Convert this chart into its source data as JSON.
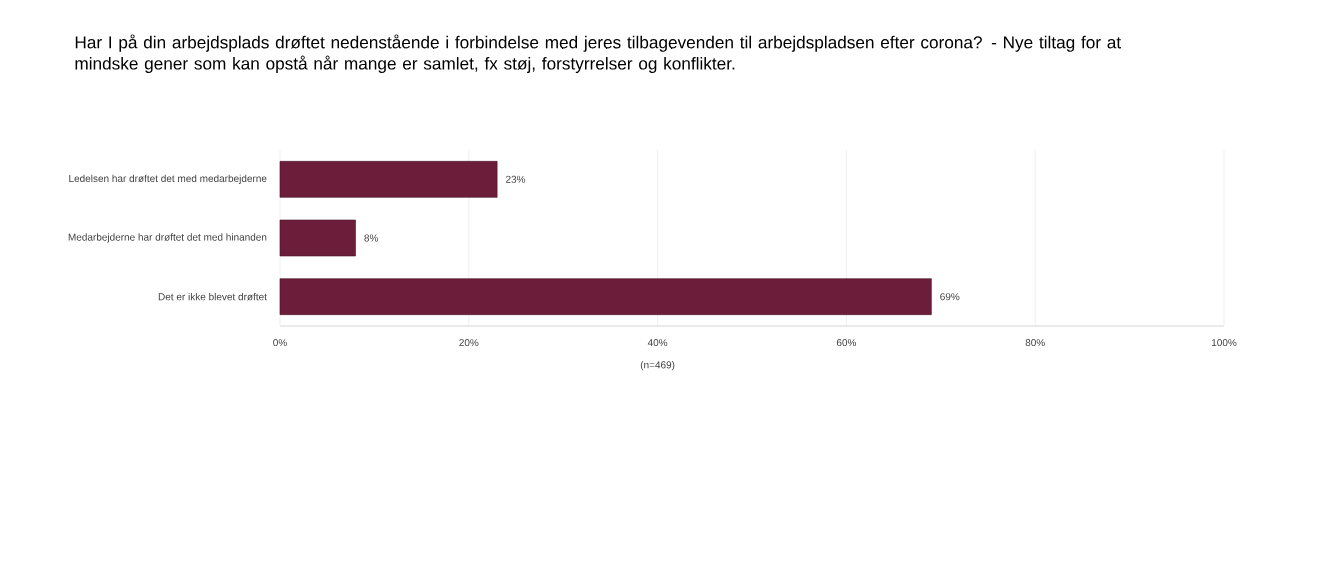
{
  "chart_data": {
    "type": "bar",
    "orientation": "horizontal",
    "title": "Har I på din arbejdsplads drøftet nedenstående i forbindelse med jeres tilbagevenden til arbejdspladsen efter corona? - Nye tiltag for at mindske gener som kan opstå når mange er samlet, fx støj, forstyrrelser og konflikter.",
    "categories": [
      "Ledelsen har drøftet det med medarbejderne",
      "Medarbejderne har drøftet det med hinanden",
      "Det er ikke blevet drøftet"
    ],
    "values": [
      23,
      8,
      69
    ],
    "value_labels": [
      "23%",
      "8%",
      "69%"
    ],
    "color": "#6b1d3a",
    "xlim": [
      0,
      100
    ],
    "xticks": [
      {
        "value": 0,
        "label": "0%"
      },
      {
        "value": 20,
        "label": "20%"
      },
      {
        "value": 40,
        "label": "40%"
      },
      {
        "value": 60,
        "label": "60%"
      },
      {
        "value": 80,
        "label": "80%"
      },
      {
        "value": 100,
        "label": "100%"
      }
    ],
    "xlabel": "(n=469)",
    "grid": "x"
  }
}
